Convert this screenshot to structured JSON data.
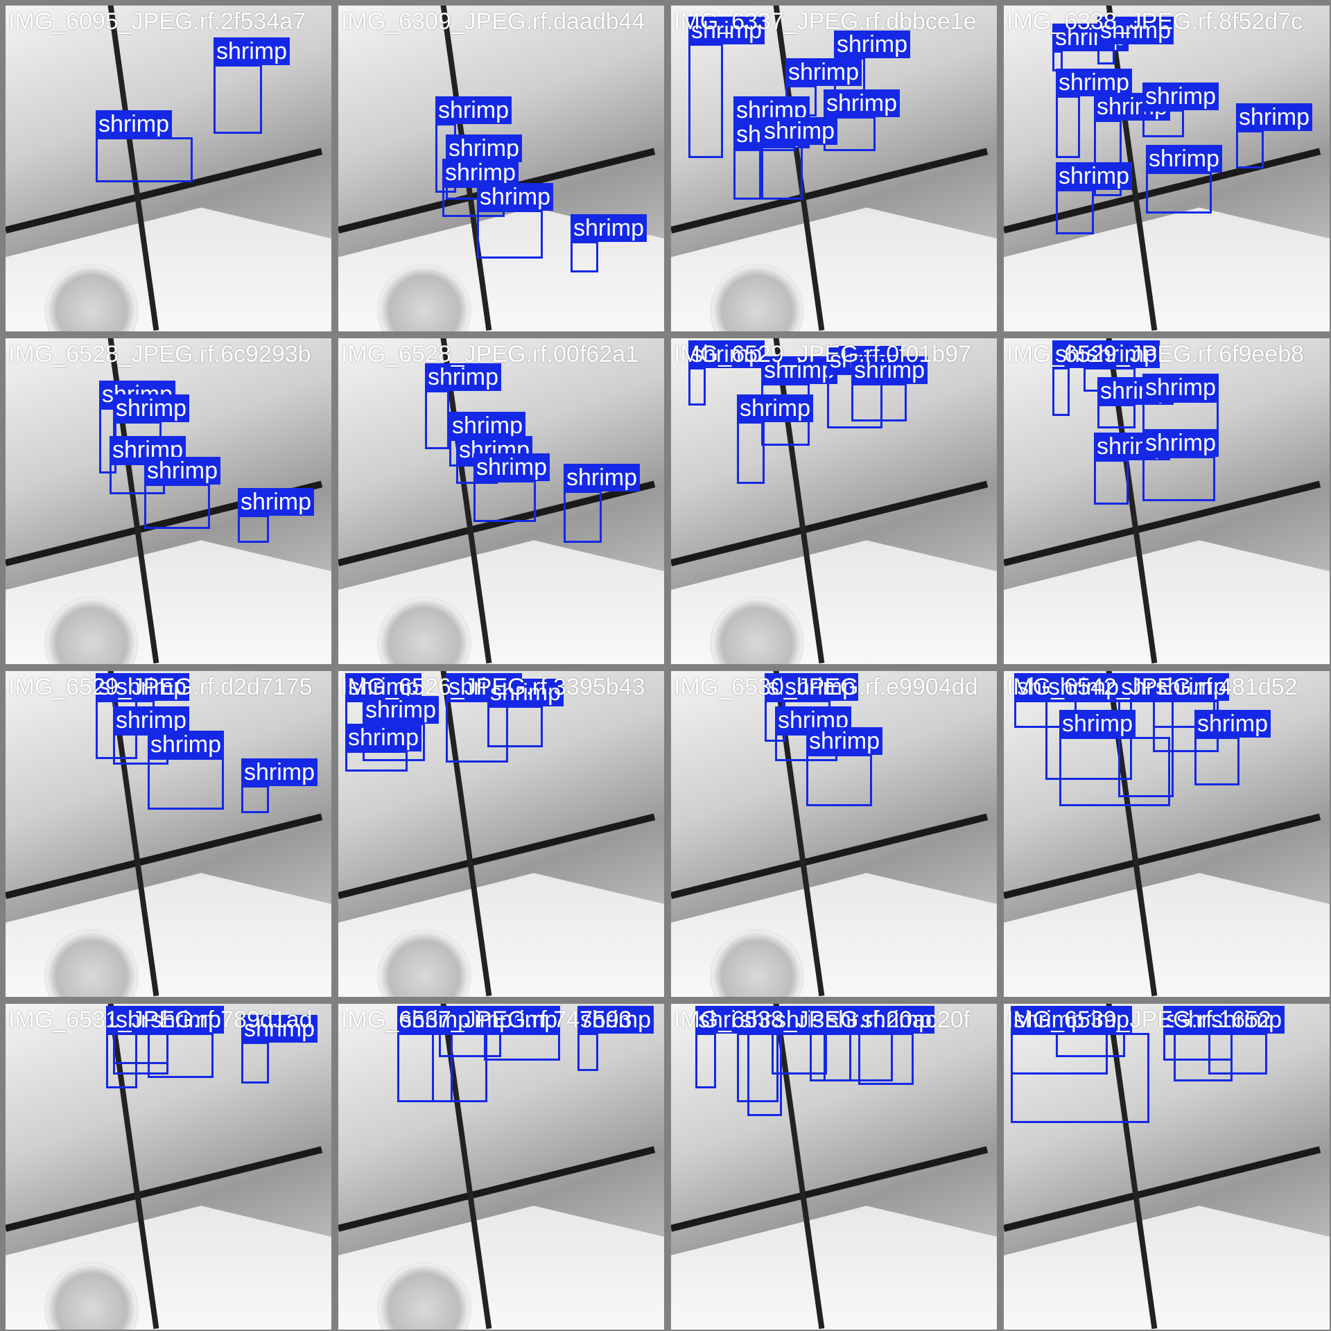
{
  "colors": {
    "box": "#1428e6",
    "label_text": "#ffffff",
    "background": "#808080"
  },
  "class_label": "shrimp",
  "tiles": [
    {
      "name": "IMG_6095_JPEG.rf.2f534a7",
      "boxes": [
        [
          300,
          85,
          70,
          100
        ],
        [
          130,
          190,
          140,
          65
        ]
      ]
    },
    {
      "name": "IMG_6309_JPEG.rf.daadb44",
      "boxes": [
        [
          140,
          170,
          30,
          100
        ],
        [
          155,
          225,
          85,
          55
        ],
        [
          150,
          260,
          90,
          45
        ],
        [
          200,
          295,
          95,
          70
        ],
        [
          335,
          340,
          40,
          45
        ]
      ]
    },
    {
      "name": "IMG_6337_JPEG.rf.dbbce1e",
      "boxes": [
        [
          25,
          55,
          50,
          165
        ],
        [
          235,
          75,
          45,
          55
        ],
        [
          165,
          115,
          45,
          45
        ],
        [
          220,
          160,
          75,
          50
        ],
        [
          90,
          170,
          90,
          40
        ],
        [
          90,
          205,
          40,
          75
        ],
        [
          130,
          200,
          60,
          80
        ]
      ]
    },
    {
      "name": "IMG_6338_JPEG.rf.8f52d7c",
      "boxes": [
        [
          70,
          65,
          15,
          30
        ],
        [
          135,
          55,
          25,
          30
        ],
        [
          75,
          130,
          35,
          90
        ],
        [
          130,
          165,
          40,
          110
        ],
        [
          200,
          150,
          60,
          40
        ],
        [
          205,
          240,
          95,
          60
        ],
        [
          75,
          265,
          55,
          65
        ],
        [
          335,
          180,
          40,
          55
        ]
      ]
    },
    {
      "name": "IMG_6528_JPEG.rf.6c9293b",
      "boxes": [
        [
          135,
          580,
          25,
          95
        ],
        [
          155,
          600,
          70,
          60
        ],
        [
          150,
          660,
          80,
          45
        ],
        [
          200,
          690,
          95,
          65
        ],
        [
          335,
          735,
          45,
          40
        ]
      ]
    },
    {
      "name": "IMG_6528_JPEG.rf.00f62a1",
      "boxes": [
        [
          125,
          555,
          35,
          85
        ],
        [
          160,
          625,
          90,
          40
        ],
        [
          170,
          660,
          60,
          30
        ],
        [
          195,
          685,
          90,
          60
        ],
        [
          325,
          700,
          55,
          75
        ]
      ]
    },
    {
      "name": "IMG_6529_JPEG.rf.0f01b97",
      "boxes": [
        [
          25,
          510,
          25,
          55
        ],
        [
          130,
          545,
          70,
          90
        ],
        [
          95,
          600,
          40,
          90
        ],
        [
          225,
          530,
          80,
          80
        ],
        [
          260,
          545,
          80,
          55
        ]
      ]
    },
    {
      "name": "IMG_6529_JPEG.rf.6f9eeb8",
      "boxes": [
        [
          70,
          475,
          25,
          70
        ],
        [
          115,
          520,
          75,
          35
        ],
        [
          135,
          575,
          55,
          35
        ],
        [
          200,
          570,
          110,
          70
        ],
        [
          130,
          655,
          50,
          65
        ],
        [
          200,
          650,
          105,
          65
        ]
      ]
    },
    {
      "name": "IMG_6529_JPEG.rf.d2d7175",
      "boxes": [
        [
          130,
          975,
          60,
          85
        ],
        [
          155,
          995,
          60,
          50
        ],
        [
          155,
          1050,
          80,
          45
        ],
        [
          205,
          1085,
          110,
          75
        ],
        [
          340,
          1125,
          40,
          40
        ]
      ]
    },
    {
      "name": "IMG_6526_JPEG.rf.3395b43",
      "boxes": [
        [
          10,
          935,
          35,
          70
        ],
        [
          35,
          1035,
          90,
          55
        ],
        [
          155,
          975,
          90,
          90
        ],
        [
          215,
          1010,
          80,
          60
        ],
        [
          10,
          1075,
          90,
          30
        ]
      ]
    },
    {
      "name": "IMG_6530_JPEG.rf.e9904dd",
      "boxes": [
        [
          135,
          990,
          30,
          60
        ],
        [
          160,
          995,
          70,
          45
        ],
        [
          150,
          1050,
          90,
          40
        ],
        [
          195,
          1080,
          95,
          75
        ]
      ]
    },
    {
      "name": "IMG_6542_JPEG.rf.481d52",
      "boxes": [
        [
          15,
          955,
          90,
          40
        ],
        [
          60,
          935,
          125,
          115
        ],
        [
          165,
          865,
          80,
          140
        ],
        [
          215,
          905,
          95,
          75
        ],
        [
          215,
          940,
          90,
          40
        ],
        [
          80,
          1055,
          160,
          100
        ],
        [
          275,
          1055,
          65,
          70
        ]
      ]
    },
    {
      "name": "IMG_6531_JPEG.rf.789d1ad",
      "boxes": [
        [
          145,
          1370,
          45,
          80
        ],
        [
          155,
          1395,
          80,
          60
        ],
        [
          155,
          1445,
          80,
          45
        ],
        [
          205,
          1480,
          95,
          65
        ],
        [
          340,
          1495,
          40,
          60
        ]
      ]
    },
    {
      "name": "IMG_6537_JPEG.rf.747593",
      "boxes": [
        [
          135,
          1310,
          80,
          100
        ],
        [
          210,
          1350,
          110,
          40
        ],
        [
          145,
          1370,
          90,
          35
        ],
        [
          85,
          1415,
          80,
          100
        ],
        [
          345,
          1315,
          30,
          55
        ]
      ]
    },
    {
      "name": "IMG_6538_JPEG.rf.20ac20f",
      "boxes": [
        [
          110,
          1265,
          50,
          120
        ],
        [
          35,
          1305,
          30,
          80
        ],
        [
          95,
          1355,
          60,
          100
        ],
        [
          145,
          1360,
          80,
          60
        ],
        [
          200,
          1355,
          60,
          70
        ],
        [
          220,
          1315,
          100,
          70
        ],
        [
          270,
          1310,
          80,
          75
        ]
      ]
    },
    {
      "name": "IMG_6539_JPEG.rf.1652",
      "boxes": [
        [
          10,
          1345,
          200,
          130
        ],
        [
          75,
          1320,
          100,
          35
        ],
        [
          230,
          1320,
          100,
          40
        ],
        [
          245,
          1380,
          85,
          70
        ],
        [
          295,
          1440,
          85,
          60
        ],
        [
          10,
          1480,
          140,
          60
        ]
      ]
    }
  ]
}
